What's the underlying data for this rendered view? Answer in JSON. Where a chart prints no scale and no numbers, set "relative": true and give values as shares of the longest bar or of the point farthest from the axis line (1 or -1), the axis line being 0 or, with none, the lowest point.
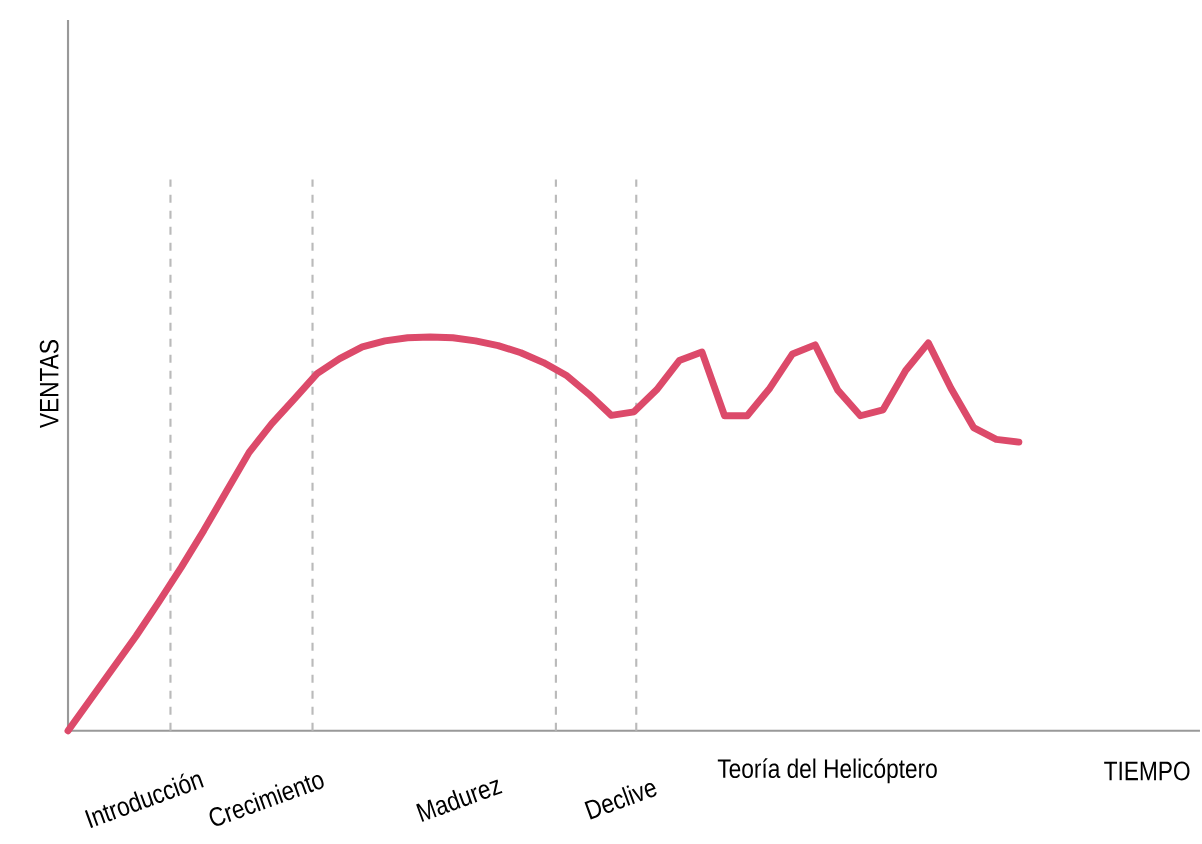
{
  "chart_data": {
    "type": "line",
    "relative": true,
    "xlabel": "TIEMPO",
    "ylabel": "VENTAS",
    "categories": [
      null,
      null,
      null,
      null,
      null,
      null,
      null,
      null,
      null,
      null,
      null,
      null,
      null,
      null,
      null,
      null,
      null,
      null,
      null,
      null,
      null,
      null,
      null,
      null,
      null,
      null,
      null,
      null,
      null,
      null,
      null,
      null,
      null,
      null,
      null,
      null,
      null,
      null,
      null,
      null,
      null,
      null,
      null
    ],
    "series": [
      {
        "color": "#dc4a6a",
        "line_style": "solid",
        "values": [
          0,
          0.08,
          0.16,
          0.24,
          0.326,
          0.415,
          0.509,
          0.608,
          0.707,
          0.78,
          0.843,
          0.907,
          0.945,
          0.975,
          0.99,
          0.998,
          1,
          0.998,
          0.99,
          0.978,
          0.96,
          0.935,
          0.903,
          0.855,
          0.801,
          0.81,
          0.866,
          0.94,
          0.962,
          0.8,
          0.8,
          0.87,
          0.957,
          0.98,
          0.865,
          0.8,
          0.815,
          0.915,
          0.985,
          0.87,
          0.77,
          0.74,
          0.733
        ]
      }
    ],
    "annotations": [
      "Introducción",
      "Crecimiento",
      "Madurez",
      "Declive",
      "Teoría del Helicóptero"
    ]
  }
}
